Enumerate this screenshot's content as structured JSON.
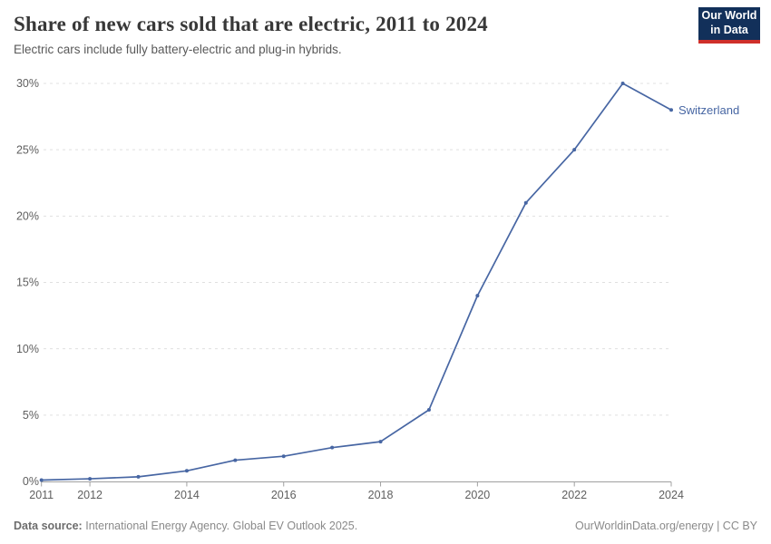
{
  "header": {
    "title": "Share of new cars sold that are electric, 2011 to 2024",
    "subtitle": "Electric cars include fully battery-electric and plug-in hybrids."
  },
  "logo": {
    "line1": "Our World",
    "line2": "in Data",
    "bg_color": "#12305a",
    "accent_color": "#cf2f2a"
  },
  "chart_data": {
    "type": "line",
    "title": "Share of new cars sold that are electric, 2011 to 2024",
    "subtitle": "Electric cars include fully battery-electric and plug-in hybrids.",
    "x": [
      2011,
      2012,
      2013,
      2014,
      2015,
      2016,
      2017,
      2018,
      2019,
      2020,
      2021,
      2022,
      2023,
      2024
    ],
    "series": [
      {
        "name": "Switzerland",
        "color": "#4766a3",
        "values": [
          0.1,
          0.2,
          0.35,
          0.8,
          1.6,
          1.9,
          2.55,
          3.0,
          5.4,
          14.0,
          21.0,
          25.0,
          30.0,
          28.0
        ]
      }
    ],
    "xlim": [
      2011,
      2024
    ],
    "ylim": [
      0,
      30
    ],
    "yticks": [
      0,
      5,
      10,
      15,
      20,
      25,
      30
    ],
    "ytick_suffix": "%",
    "xticks": [
      2011,
      2012,
      2014,
      2016,
      2018,
      2020,
      2022,
      2024
    ],
    "grid": "horizontal-dashed",
    "legend": "end-of-line-label",
    "axis_color": "#a0a0a0",
    "grid_color": "#e0e0e0",
    "tick_label_color": "#5f5f5f"
  },
  "footer": {
    "datasource_label": "Data source:",
    "datasource_text": "International Energy Agency. Global EV Outlook 2025.",
    "credit": "OurWorldinData.org/energy | CC BY"
  }
}
